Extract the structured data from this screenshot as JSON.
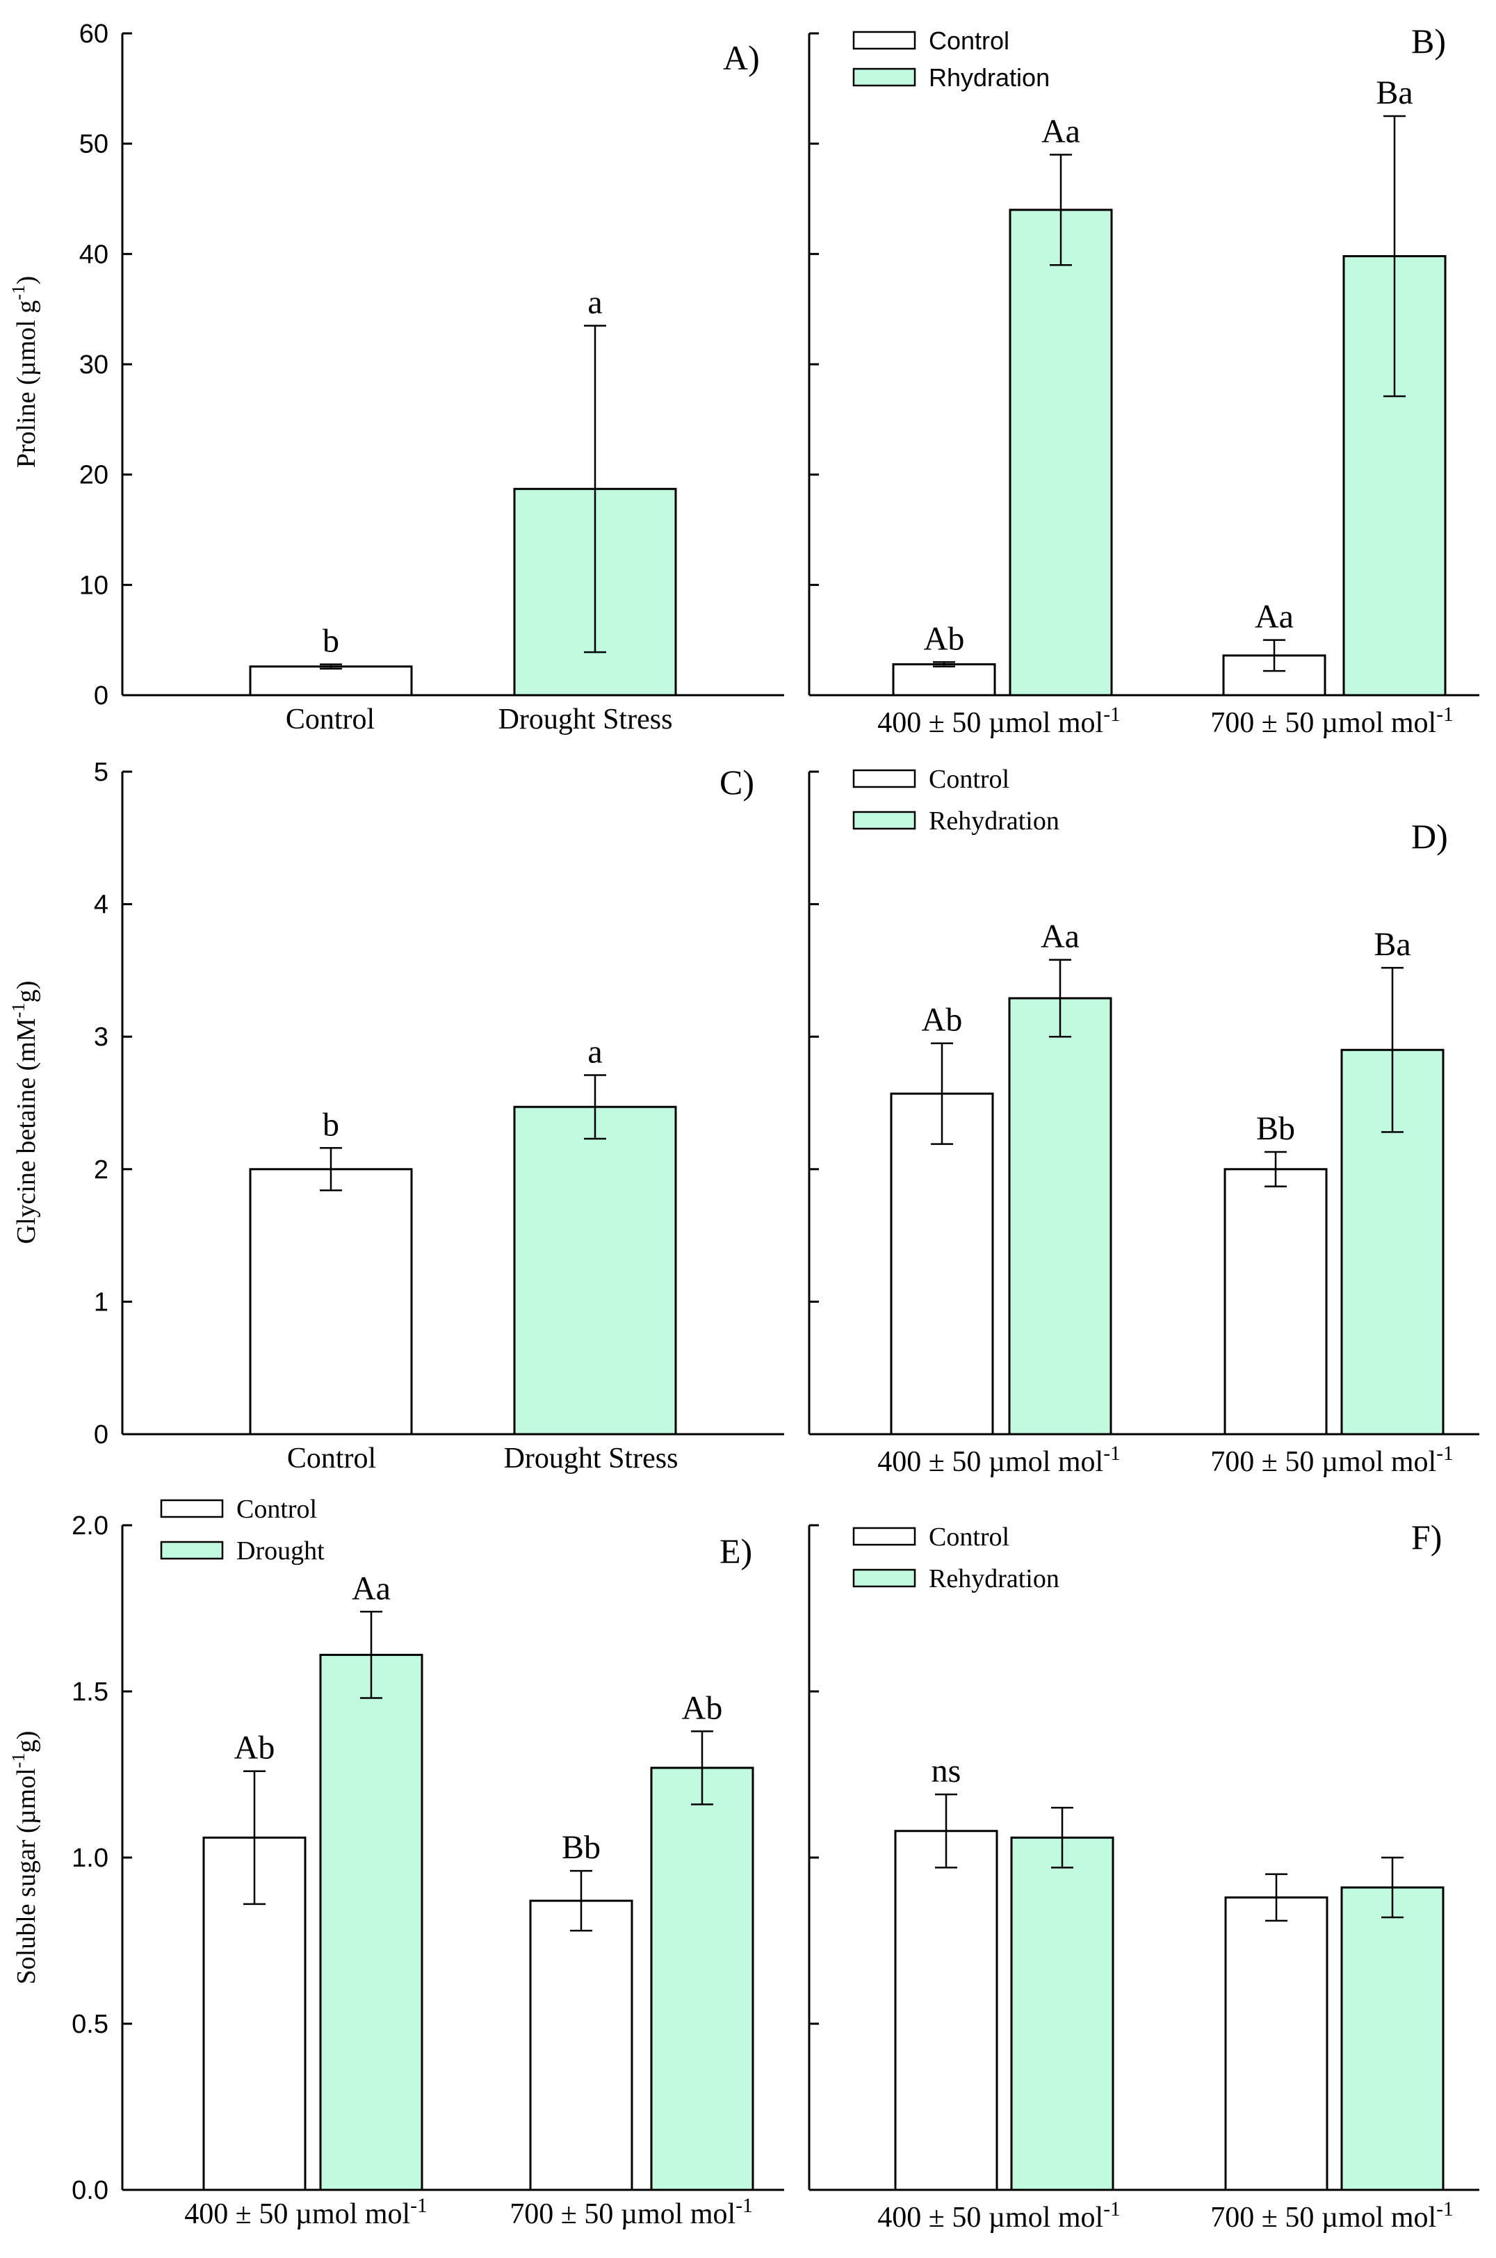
{
  "colors": {
    "drought_fill": "#c2fadf",
    "control_fill": "#ffffff",
    "stroke": "#000000"
  },
  "chart_data": [
    {
      "panel": "A)",
      "type": "bar",
      "ylabel": "Proline (µmol g-1)",
      "ylim": [
        0,
        60
      ],
      "yticks": [
        0,
        10,
        20,
        30,
        40,
        50,
        60
      ],
      "categories": [
        "Control",
        "Drought Stress"
      ],
      "bars": [
        {
          "category": "Control",
          "fill": "control",
          "value": 2.6,
          "err": 0.2,
          "label": "b"
        },
        {
          "category": "Drought Stress",
          "fill": "drought",
          "value": 18.7,
          "err": 14.8,
          "label": "a"
        }
      ]
    },
    {
      "panel": "B)",
      "type": "bar",
      "ylim": [
        0,
        60
      ],
      "categories": [
        "400 ± 50 µmol mol-1",
        "700 ± 50 µmol mol-1"
      ],
      "legend": [
        {
          "name": "Control",
          "fill": "control"
        },
        {
          "name": "Rhydration",
          "fill": "drought"
        }
      ],
      "series": [
        {
          "name": "Control",
          "values": [
            2.8,
            3.6
          ],
          "err": [
            0.2,
            1.4
          ],
          "labels": [
            "Ab",
            "Aa"
          ]
        },
        {
          "name": "Rhydration",
          "values": [
            44.0,
            39.8
          ],
          "err": [
            5.0,
            12.7
          ],
          "labels": [
            "Aa",
            "Ba"
          ]
        }
      ]
    },
    {
      "panel": "C)",
      "type": "bar",
      "ylabel": "Glycine betaine (mM-1g)",
      "ylim": [
        0,
        5
      ],
      "yticks": [
        0,
        1,
        2,
        3,
        4,
        5
      ],
      "categories": [
        "Control",
        "Drought Stress"
      ],
      "bars": [
        {
          "category": "Control",
          "fill": "control",
          "value": 2.0,
          "err": 0.16,
          "label": "b"
        },
        {
          "category": "Drought Stress",
          "fill": "drought",
          "value": 2.47,
          "err": 0.24,
          "label": "a"
        }
      ]
    },
    {
      "panel": "D)",
      "type": "bar",
      "ylim": [
        0,
        5
      ],
      "categories": [
        "400 ± 50 µmol mol-1",
        "700 ± 50 µmol mol-1"
      ],
      "legend": [
        {
          "name": "Control",
          "fill": "control"
        },
        {
          "name": "Rehydration",
          "fill": "drought"
        }
      ],
      "series": [
        {
          "name": "Control",
          "values": [
            2.57,
            2.0
          ],
          "err": [
            0.38,
            0.13
          ],
          "labels": [
            "Ab",
            "Bb"
          ]
        },
        {
          "name": "Rehydration",
          "values": [
            3.29,
            2.9
          ],
          "err": [
            0.29,
            0.62
          ],
          "labels": [
            "Aa",
            "Ba"
          ]
        }
      ]
    },
    {
      "panel": "E)",
      "type": "bar",
      "ylabel": "Soluble sugar (µmol-1g)",
      "ylim": [
        0,
        2.0
      ],
      "yticks": [
        "0.0",
        "0.5",
        "1.0",
        "1.5",
        "2.0"
      ],
      "categories": [
        "400 ± 50 µmol mol-1",
        "700 ± 50 µmol mol-1"
      ],
      "legend": [
        {
          "name": "Control",
          "fill": "control"
        },
        {
          "name": "Drought",
          "fill": "drought"
        }
      ],
      "series": [
        {
          "name": "Control",
          "values": [
            1.06,
            0.87
          ],
          "err": [
            0.2,
            0.09
          ],
          "labels": [
            "Ab",
            "Bb"
          ]
        },
        {
          "name": "Drought",
          "values": [
            1.61,
            1.27
          ],
          "err": [
            0.13,
            0.11
          ],
          "labels": [
            "Aa",
            "Ab"
          ]
        }
      ]
    },
    {
      "panel": "F)",
      "type": "bar",
      "ylim": [
        0,
        2.0
      ],
      "categories": [
        "400 ± 50 µmol mol-1",
        "700 ± 50 µmol mol-1"
      ],
      "legend": [
        {
          "name": "Control",
          "fill": "control"
        },
        {
          "name": "Rehydration",
          "fill": "drought"
        }
      ],
      "series": [
        {
          "name": "Control",
          "values": [
            1.08,
            0.88
          ],
          "err": [
            0.11,
            0.07
          ],
          "labels": [
            "ns",
            ""
          ]
        },
        {
          "name": "Rehydration",
          "values": [
            1.06,
            0.91
          ],
          "err": [
            0.09,
            0.09
          ],
          "labels": [
            "",
            ""
          ]
        }
      ]
    }
  ]
}
